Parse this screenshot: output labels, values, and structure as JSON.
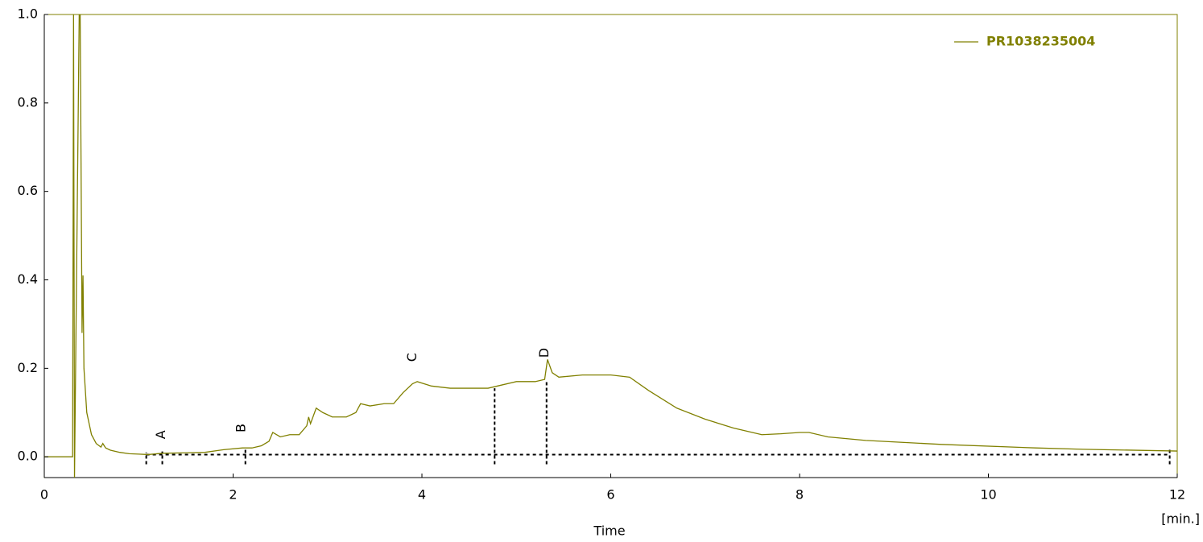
{
  "chart_data": {
    "type": "line",
    "x_label": "Time",
    "x_unit": "[min.]",
    "xlim": [
      0,
      12
    ],
    "xticks": [
      0,
      2,
      4,
      6,
      8,
      10,
      12
    ],
    "ylim": [
      -0.047,
      1.0
    ],
    "yticks": [
      {
        "value": 0,
        "label": "0.0"
      },
      0.2,
      0.4,
      0.6,
      0.8,
      {
        "value": 1,
        "label": "1.0"
      }
    ],
    "legend": "top-right",
    "series": [
      {
        "name": "PR1038235004",
        "color": "#808000",
        "x": [
          0,
          0.3,
          0.31,
          0.32,
          0.37,
          0.38,
          0.4,
          0.41,
          0.42,
          0.45,
          0.5,
          0.55,
          0.6,
          0.62,
          0.65,
          0.7,
          0.8,
          0.9,
          1.0,
          1.1,
          1.25,
          1.5,
          1.7,
          1.9,
          2.1,
          2.2,
          2.3,
          2.38,
          2.42,
          2.5,
          2.6,
          2.7,
          2.78,
          2.8,
          2.82,
          2.88,
          2.95,
          3.05,
          3.2,
          3.3,
          3.35,
          3.45,
          3.6,
          3.7,
          3.8,
          3.9,
          3.95,
          4.1,
          4.3,
          4.5,
          4.7,
          4.8,
          5.0,
          5.2,
          5.3,
          5.33,
          5.38,
          5.45,
          5.7,
          6.0,
          6.2,
          6.4,
          6.7,
          7.0,
          7.3,
          7.6,
          7.8,
          8.0,
          8.1,
          8.3,
          8.7,
          9.5,
          10.5,
          11.0,
          12.0
        ],
        "values": [
          0,
          0,
          1.0,
          -0.047,
          1.0,
          1.0,
          0.28,
          0.41,
          0.2,
          0.1,
          0.05,
          0.03,
          0.022,
          0.03,
          0.02,
          0.015,
          0.01,
          0.007,
          0.006,
          0.005,
          0.008,
          0.009,
          0.01,
          0.016,
          0.02,
          0.02,
          0.025,
          0.035,
          0.055,
          0.045,
          0.05,
          0.05,
          0.07,
          0.09,
          0.075,
          0.11,
          0.1,
          0.09,
          0.09,
          0.1,
          0.12,
          0.115,
          0.12,
          0.12,
          0.145,
          0.165,
          0.17,
          0.16,
          0.155,
          0.155,
          0.155,
          0.16,
          0.17,
          0.17,
          0.175,
          0.22,
          0.19,
          0.18,
          0.185,
          0.185,
          0.18,
          0.15,
          0.11,
          0.085,
          0.065,
          0.05,
          0.052,
          0.055,
          0.055,
          0.045,
          0.037,
          0.028,
          0.02,
          0.017,
          0.013
        ]
      }
    ],
    "baseline": {
      "x": [
        1.08,
        11.92
      ],
      "values": [
        0.005,
        0.005
      ]
    },
    "boundaries": [
      {
        "x": 1.08,
        "value": 0.01
      },
      {
        "x": 1.25,
        "value": 0.012
      },
      {
        "x": 2.13,
        "value": 0.02
      },
      {
        "x": 4.77,
        "value": 0.155
      },
      {
        "x": 5.32,
        "value": 0.17
      },
      {
        "x": 11.92,
        "value": 0.02
      }
    ],
    "peaks": [
      {
        "label": "A",
        "x": 1.24,
        "value": 0.05
      },
      {
        "label": "B",
        "x": 2.09,
        "value": 0.065
      },
      {
        "label": "C",
        "x": 3.9,
        "value": 0.225
      },
      {
        "label": "D",
        "x": 5.3,
        "value": 0.235
      }
    ]
  }
}
